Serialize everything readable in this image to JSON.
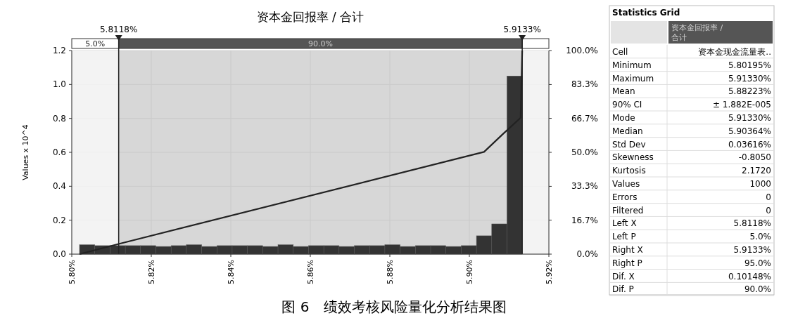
{
  "chart_data": [
    {
      "type": "histogram",
      "title": "资本金回报率 / 合计",
      "ylabel": "Values x 10^4",
      "color": "#333333",
      "bins": [
        5.80195,
        5.80579,
        5.80963,
        5.81347,
        5.81731,
        5.82115,
        5.82499,
        5.82883,
        5.83267,
        5.83651,
        5.84035,
        5.84419,
        5.84803,
        5.85187,
        5.85571,
        5.85955,
        5.86339,
        5.86723,
        5.87107,
        5.87491,
        5.87875,
        5.88259,
        5.88643,
        5.89027,
        5.89411,
        5.89795,
        5.90179,
        5.90563,
        5.90947,
        5.9133
      ],
      "values": [
        0.055,
        0.05,
        0.05,
        0.05,
        0.05,
        0.045,
        0.05,
        0.055,
        0.045,
        0.05,
        0.05,
        0.05,
        0.045,
        0.055,
        0.045,
        0.05,
        0.05,
        0.045,
        0.05,
        0.05,
        0.055,
        0.045,
        0.05,
        0.05,
        0.045,
        0.05,
        0.108,
        0.178,
        1.05
      ],
      "series": [
        {
          "type": "line",
          "axis": "y2",
          "color": "#222222",
          "x": [
            5.80195,
            5.8118,
            5.9037,
            5.9085,
            5.9129,
            5.9133
          ],
          "values": [
            0,
            5,
            50.2,
            59.1,
            67,
            100
          ]
        }
      ],
      "xlim": [
        5.8,
        5.92
      ],
      "xticks": [
        {
          "value": 5.8,
          "label": "5.80%"
        },
        {
          "value": 5.82,
          "label": "5.82%"
        },
        {
          "value": 5.84,
          "label": "5.84%"
        },
        {
          "value": 5.86,
          "label": "5.86%"
        },
        {
          "value": 5.88,
          "label": "5.88%"
        },
        {
          "value": 5.9,
          "label": "5.90%"
        },
        {
          "value": 5.92,
          "label": "5.92%"
        }
      ],
      "ylim": [
        0,
        1.2
      ],
      "yticks": [
        {
          "value": 0,
          "label": "0.0"
        },
        0.2,
        0.4,
        0.6,
        0.8,
        {
          "value": 1,
          "label": "1.0"
        },
        1.2
      ],
      "y2lim": [
        0,
        100
      ],
      "y2ticks": [
        {
          "value": 0,
          "label": "0.0%"
        },
        {
          "value": 16.7,
          "label": "16.7%"
        },
        {
          "value": 33.3,
          "label": "33.3%"
        },
        {
          "value": 50,
          "label": "50.0%"
        },
        {
          "value": 66.7,
          "label": "66.7%"
        },
        {
          "value": 83.3,
          "label": "83.3%"
        },
        {
          "value": 100,
          "label": "100.0%"
        }
      ],
      "ref_lines": [
        {
          "axis": "x",
          "value": 5.8118,
          "label": "5.8118%",
          "color": "#222222"
        },
        {
          "axis": "x",
          "value": 5.9133,
          "label": "5.9133%",
          "color": "#222222"
        }
      ],
      "bands": [
        {
          "axis": "x",
          "from": 5.8,
          "to": 5.8118,
          "label": "5.0%",
          "color": "#ffffff"
        },
        {
          "axis": "x",
          "from": 5.8118,
          "to": 5.9133,
          "label": "90.0%",
          "color": "#555555"
        },
        {
          "axis": "x",
          "from": 5.9133,
          "to": 5.92,
          "label": null,
          "color": "#ffffff"
        }
      ],
      "grid": true,
      "annotations": [
        "图 6　绩效考核风险量化分析结果图"
      ]
    },
    {
      "type": "other",
      "title": "Statistics Grid",
      "categories": [
        "资本金回报率 / 合计"
      ],
      "y_categories": [
        "Cell",
        "Minimum",
        "Maximum",
        "Mean",
        "90% CI",
        "Mode",
        "Median",
        "Std Dev",
        "Skewness",
        "Kurtosis",
        "Values",
        "Errors",
        "Filtered",
        "Left X",
        "Left P",
        "Right X",
        "Right P",
        "Dif. X",
        "Dif. P"
      ],
      "cell_labels": [
        [
          "资本金现金流量表.."
        ],
        [
          "5.80195%"
        ],
        [
          "5.91330%"
        ],
        [
          "5.88223%"
        ],
        [
          "± 1.882E-005"
        ],
        [
          "5.91330%"
        ],
        [
          "5.90364%"
        ],
        [
          "0.03616%"
        ],
        [
          "-0.8050"
        ],
        [
          "2.1720"
        ],
        [
          "1000"
        ],
        [
          "0"
        ],
        [
          "0"
        ],
        [
          "5.8118%"
        ],
        [
          "5.0%"
        ],
        [
          "5.9133%"
        ],
        [
          "95.0%"
        ],
        [
          "0.10148%"
        ],
        [
          "90.0%"
        ]
      ]
    }
  ]
}
